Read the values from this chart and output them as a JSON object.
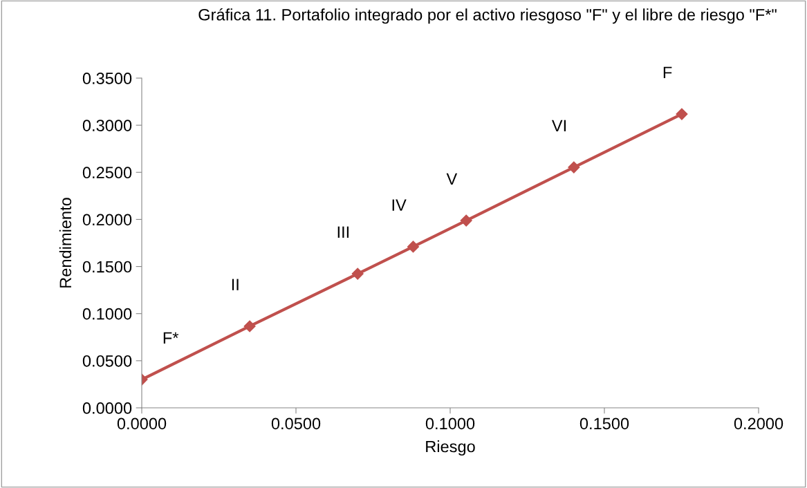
{
  "chart_data": {
    "type": "line",
    "title": "Gráfica 11. Portafolio integrado por el activo riesgoso \"F\" y el libre de riesgo \"F*\"",
    "xlabel": "Riesgo",
    "ylabel": "Rendimiento",
    "x": [
      0.0,
      0.035,
      0.07,
      0.088,
      0.1052,
      0.1401,
      0.1751
    ],
    "series": [
      {
        "color": "#c0504d",
        "values": [
          0.03,
          0.0866,
          0.1423,
          0.171,
          0.1988,
          0.2553,
          0.3118
        ],
        "value_labels": [
          "F*",
          "II",
          "III",
          "IV",
          "V",
          "VI",
          "F"
        ]
      }
    ],
    "xlim": [
      0,
      0.2
    ],
    "xticks": [
      {
        "value": 0,
        "label": "0.0000"
      },
      {
        "value": 0.05,
        "label": "0.0500"
      },
      {
        "value": 0.1,
        "label": "0.1000"
      },
      {
        "value": 0.15,
        "label": "0.1500"
      },
      {
        "value": 0.2,
        "label": "0.2000"
      }
    ],
    "ylim": [
      0,
      0.35
    ],
    "yticks": [
      {
        "value": 0,
        "label": "0.0000"
      },
      {
        "value": 0.05,
        "label": "0.0500"
      },
      {
        "value": 0.1,
        "label": "0.1000"
      },
      {
        "value": 0.15,
        "label": "0.1500"
      },
      {
        "value": 0.2,
        "label": "0.2000"
      },
      {
        "value": 0.25,
        "label": "0.2500"
      },
      {
        "value": 0.3,
        "label": "0.3000"
      },
      {
        "value": 0.35,
        "label": "0.3500"
      }
    ],
    "grid": false,
    "legend": false,
    "marker": "diamond",
    "line_style": "solid"
  }
}
